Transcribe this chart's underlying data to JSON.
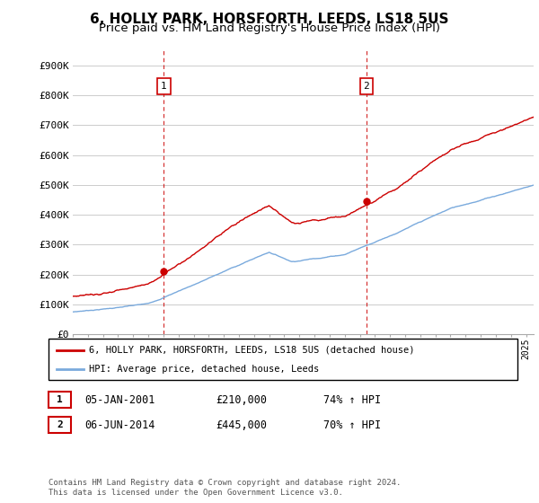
{
  "title": "6, HOLLY PARK, HORSFORTH, LEEDS, LS18 5US",
  "subtitle": "Price paid vs. HM Land Registry's House Price Index (HPI)",
  "ylim": [
    0,
    950000
  ],
  "yticks": [
    0,
    100000,
    200000,
    300000,
    400000,
    500000,
    600000,
    700000,
    800000,
    900000
  ],
  "ytick_labels": [
    "£0",
    "£100K",
    "£200K",
    "£300K",
    "£400K",
    "£500K",
    "£600K",
    "£700K",
    "£800K",
    "£900K"
  ],
  "sale1_date": 2001.03,
  "sale1_price": 210000,
  "sale1_label": "1",
  "sale2_date": 2014.43,
  "sale2_price": 445000,
  "sale2_label": "2",
  "line_color_sold": "#cc0000",
  "line_color_hpi": "#7aaadd",
  "dashed_color": "#cc0000",
  "legend_entry1": "6, HOLLY PARK, HORSFORTH, LEEDS, LS18 5US (detached house)",
  "legend_entry2": "HPI: Average price, detached house, Leeds",
  "annotation1_date": "05-JAN-2001",
  "annotation1_price": "£210,000",
  "annotation1_hpi": "74% ↑ HPI",
  "annotation2_date": "06-JUN-2014",
  "annotation2_price": "£445,000",
  "annotation2_hpi": "70% ↑ HPI",
  "footer": "Contains HM Land Registry data © Crown copyright and database right 2024.\nThis data is licensed under the Open Government Licence v3.0.",
  "background_color": "#ffffff",
  "grid_color": "#cccccc",
  "title_fontsize": 11,
  "subtitle_fontsize": 9.5
}
